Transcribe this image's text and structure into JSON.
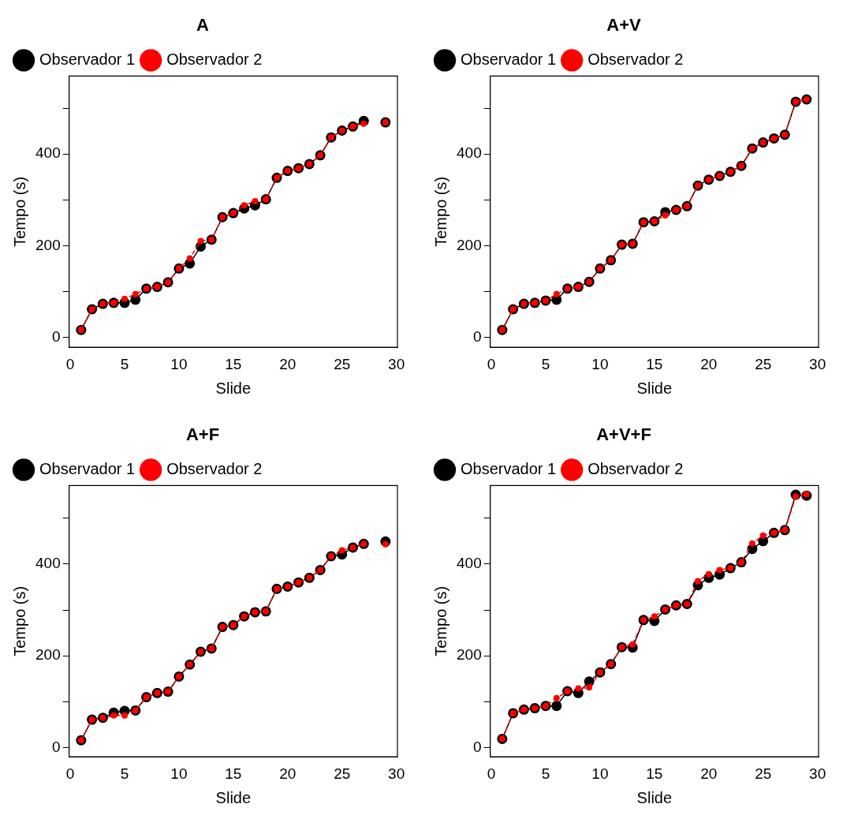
{
  "chart_data": [
    {
      "type": "line",
      "title": "A",
      "xlabel": "Slide",
      "ylabel": "Tempo (s)",
      "x": [
        1,
        2,
        3,
        4,
        5,
        6,
        7,
        8,
        9,
        10,
        11,
        12,
        13,
        14,
        15,
        16,
        17,
        18,
        19,
        20,
        21,
        22,
        23,
        24,
        25,
        26,
        27,
        28,
        29
      ],
      "xlim": [
        -0.1,
        30.1
      ],
      "xticks": [
        0,
        5,
        10,
        15,
        20,
        25,
        30
      ],
      "ylim": [
        -22,
        570
      ],
      "yticks": [
        0,
        {
          "value": 100,
          "label": null
        },
        200,
        {
          "value": 300,
          "label": null
        },
        400,
        {
          "value": 500,
          "label": null
        }
      ],
      "grid": false,
      "legend": "top left",
      "marker": "circle",
      "series": [
        {
          "name": "Observador 1",
          "color": "#000000",
          "line_style": "solid",
          "values": [
            16,
            61,
            73,
            75,
            75,
            82,
            106,
            110,
            120,
            150,
            161,
            198,
            213,
            262,
            271,
            281,
            288,
            301,
            348,
            363,
            369,
            378,
            397,
            436,
            451,
            460,
            472,
            null,
            469
          ]
        },
        {
          "name": "Observador 2",
          "color": "#ff0000",
          "line_style": "dashed",
          "values": [
            16,
            61,
            73,
            75,
            84,
            94,
            106,
            110,
            120,
            150,
            172,
            210,
            213,
            262,
            271,
            288,
            297,
            301,
            348,
            363,
            369,
            378,
            397,
            436,
            451,
            460,
            466,
            null,
            469
          ]
        }
      ]
    },
    {
      "type": "line",
      "title": "A+V",
      "xlabel": "Slide",
      "ylabel": "Tempo (s)",
      "x": [
        1,
        2,
        3,
        4,
        5,
        6,
        7,
        8,
        9,
        10,
        11,
        12,
        13,
        14,
        15,
        16,
        17,
        18,
        19,
        20,
        21,
        22,
        23,
        24,
        25,
        26,
        27,
        28,
        29
      ],
      "xlim": [
        -0.1,
        30.1
      ],
      "xticks": [
        0,
        5,
        10,
        15,
        20,
        25,
        30
      ],
      "ylim": [
        -22,
        570
      ],
      "yticks": [
        0,
        {
          "value": 100,
          "label": null
        },
        200,
        {
          "value": 300,
          "label": null
        },
        400,
        {
          "value": 500,
          "label": null
        }
      ],
      "grid": false,
      "legend": "top left",
      "marker": "circle",
      "series": [
        {
          "name": "Observador 1",
          "color": "#000000",
          "line_style": "solid",
          "values": [
            16,
            61,
            73,
            75,
            80,
            82,
            106,
            110,
            121,
            150,
            168,
            202,
            204,
            251,
            253,
            273,
            278,
            286,
            331,
            344,
            352,
            361,
            374,
            412,
            425,
            434,
            442,
            514,
            519
          ]
        },
        {
          "name": "Observador 2",
          "color": "#ff0000",
          "line_style": "dashed",
          "values": [
            16,
            61,
            73,
            75,
            80,
            94,
            106,
            110,
            121,
            150,
            168,
            202,
            204,
            251,
            253,
            266,
            278,
            286,
            331,
            344,
            352,
            361,
            374,
            412,
            425,
            434,
            442,
            514,
            519
          ]
        }
      ]
    },
    {
      "type": "line",
      "title": "A+F",
      "xlabel": "Slide",
      "ylabel": "Tempo (s)",
      "x": [
        1,
        2,
        3,
        4,
        5,
        6,
        7,
        8,
        9,
        10,
        11,
        12,
        13,
        14,
        15,
        16,
        17,
        18,
        19,
        20,
        21,
        22,
        23,
        24,
        25,
        26,
        27,
        28,
        29
      ],
      "xlim": [
        -0.1,
        30.1
      ],
      "xticks": [
        0,
        5,
        10,
        15,
        20,
        25,
        30
      ],
      "ylim": [
        -20,
        571
      ],
      "yticks": [
        0,
        {
          "value": 100,
          "label": null
        },
        200,
        {
          "value": 300,
          "label": null
        },
        400,
        {
          "value": 500,
          "label": null
        }
      ],
      "grid": false,
      "legend": "top left",
      "marker": "circle",
      "series": [
        {
          "name": "Observador 1",
          "color": "#000000",
          "line_style": "solid",
          "values": [
            16,
            61,
            65,
            76,
            80,
            81,
            110,
            119,
            122,
            155,
            181,
            209,
            216,
            263,
            267,
            286,
            295,
            297,
            346,
            351,
            360,
            370,
            387,
            417,
            421,
            436,
            444,
            null,
            449
          ]
        },
        {
          "name": "Observador 2",
          "color": "#ff0000",
          "line_style": "dashed",
          "values": [
            16,
            61,
            65,
            70,
            70,
            81,
            110,
            119,
            122,
            155,
            181,
            209,
            216,
            263,
            267,
            286,
            295,
            297,
            346,
            351,
            360,
            370,
            387,
            417,
            430,
            436,
            444,
            null,
            443
          ]
        }
      ]
    },
    {
      "type": "line",
      "title": "A+V+F",
      "xlabel": "Slide",
      "ylabel": "Tempo (s)",
      "x": [
        1,
        2,
        3,
        4,
        5,
        6,
        7,
        8,
        9,
        10,
        11,
        12,
        13,
        14,
        15,
        16,
        17,
        18,
        19,
        20,
        21,
        22,
        23,
        24,
        25,
        26,
        27,
        28,
        29
      ],
      "xlim": [
        -0.1,
        30.1
      ],
      "xticks": [
        0,
        5,
        10,
        15,
        20,
        25,
        30
      ],
      "ylim": [
        -20,
        571
      ],
      "yticks": [
        0,
        {
          "value": 100,
          "label": null
        },
        200,
        {
          "value": 300,
          "label": null
        },
        400,
        {
          "value": 500,
          "label": null
        }
      ],
      "grid": false,
      "legend": "top left",
      "marker": "circle",
      "series": [
        {
          "name": "Observador 1",
          "color": "#000000",
          "line_style": "solid",
          "values": [
            19,
            75,
            83,
            86,
            91,
            91,
            123,
            119,
            144,
            164,
            182,
            219,
            218,
            278,
            276,
            301,
            310,
            313,
            354,
            370,
            377,
            391,
            404,
            433,
            450,
            468,
            474,
            551,
            549
          ]
        },
        {
          "name": "Observador 2",
          "color": "#ff0000",
          "line_style": "dashed",
          "values": [
            19,
            75,
            83,
            86,
            91,
            108,
            123,
            129,
            131,
            164,
            182,
            219,
            225,
            278,
            286,
            301,
            310,
            313,
            363,
            378,
            387,
            391,
            404,
            445,
            462,
            468,
            474,
            547,
            552
          ]
        }
      ]
    }
  ]
}
